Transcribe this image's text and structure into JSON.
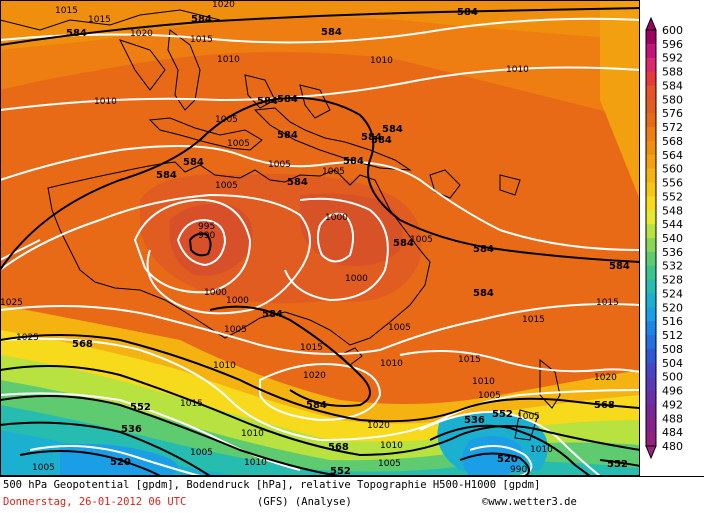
{
  "map": {
    "caption": "500 hPa Geopotential [gpdm], Bodendruck [hPa], relative Topographie H500-H1000 [gpdm]",
    "date": "Donnerstag, 26-01-2012  06 UTC",
    "model": "(GFS)  (Analyse)",
    "copyright": "©www.wetter3.de",
    "isobar_labels": [
      "1015",
      "1015",
      "1015",
      "1020",
      "1010",
      "1010",
      "1010",
      "1010",
      "1005",
      "1005",
      "1005",
      "1005",
      "1000",
      "1000",
      "1000",
      "1000",
      "995",
      "990",
      "1005",
      "1005",
      "1010",
      "1015",
      "1020",
      "1020",
      "1015",
      "1010",
      "1015",
      "1010",
      "1015",
      "1010",
      "1005",
      "1015",
      "1015",
      "1010",
      "1005",
      "1015",
      "1010",
      "1020",
      "1025",
      "1005",
      "1015",
      "1010",
      "1005",
      "1010",
      "1005",
      "990",
      "1010",
      "1015",
      "1020",
      "1015",
      "1000",
      "995"
    ],
    "geopotential_labels": [
      "584",
      "584",
      "584",
      "584",
      "584",
      "584",
      "584",
      "584",
      "584",
      "584",
      "584",
      "584",
      "584",
      "584",
      "584",
      "584",
      "584",
      "584",
      "568",
      "568",
      "568",
      "552",
      "552",
      "552",
      "552",
      "536",
      "536",
      "520",
      "520",
      "520",
      "584",
      "584"
    ],
    "legend": {
      "levels": [
        "600",
        "596",
        "592",
        "588",
        "584",
        "580",
        "576",
        "572",
        "568",
        "564",
        "560",
        "556",
        "552",
        "548",
        "544",
        "540",
        "536",
        "532",
        "528",
        "524",
        "520",
        "516",
        "512",
        "508",
        "504",
        "500",
        "496",
        "492",
        "488",
        "484",
        "480"
      ],
      "colors": [
        "#a00060",
        "#c0147a",
        "#d8286e",
        "#e83a3a",
        "#e4532a",
        "#e05c20",
        "#e86a16",
        "#ee7d12",
        "#f08e0e",
        "#f3a010",
        "#f5b312",
        "#f6c616",
        "#f7da1c",
        "#e4ea30",
        "#b8e240",
        "#88d656",
        "#5ecb70",
        "#3cc48e",
        "#26bcb0",
        "#1cb0d0",
        "#1a9ee6",
        "#1c86e8",
        "#2470e0",
        "#3058d4",
        "#4646c4",
        "#5a38b6",
        "#6a2ea6",
        "#782696",
        "#86208a",
        "#92207e",
        "#9a2478"
      ]
    }
  }
}
